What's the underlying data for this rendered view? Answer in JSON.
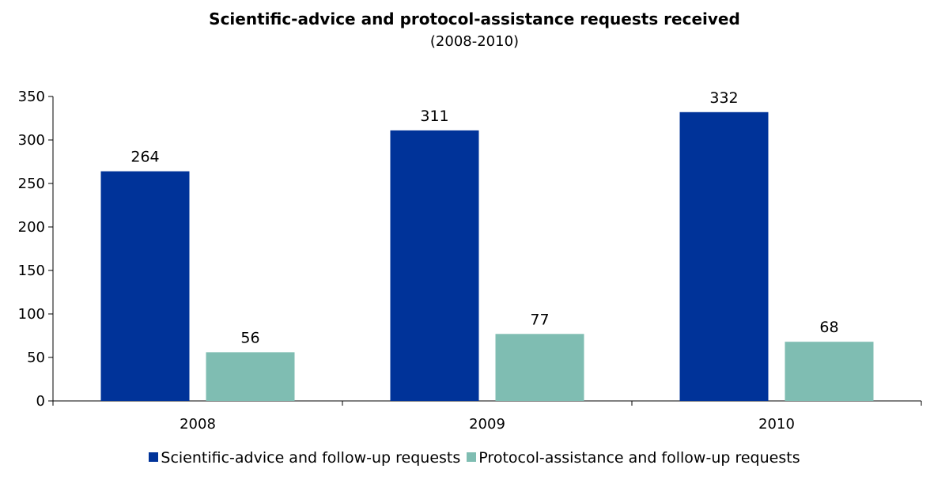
{
  "chart_data": {
    "type": "bar",
    "title": "Scientific-advice and protocol-assistance requests received",
    "subtitle": "(2008-2010)",
    "categories": [
      "2008",
      "2009",
      "2010"
    ],
    "series": [
      {
        "name": "Scientific-advice and follow-up requests",
        "values": [
          264,
          311,
          332
        ],
        "color": "#003399"
      },
      {
        "name": "Protocol-assistance and follow-up requests",
        "values": [
          56,
          77,
          68
        ],
        "color": "#7fbdb2"
      }
    ],
    "ylim": [
      0,
      350
    ],
    "yticks": [
      "0",
      "50",
      "100",
      "150",
      "200",
      "250",
      "300",
      "350"
    ],
    "grid": false,
    "legend": "bottom"
  }
}
